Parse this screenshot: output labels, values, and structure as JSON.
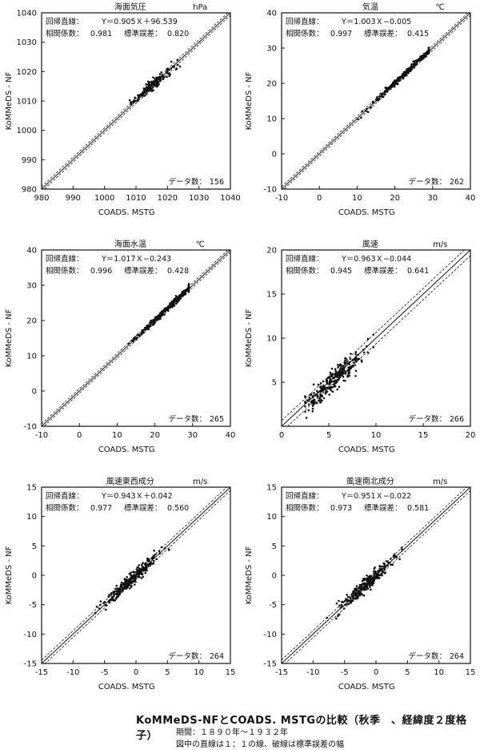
{
  "caption": {
    "title": "KoMMeDS-NFとCOADS. MSTGの比較（秋季　、経緯度２度格子）",
    "period": "期間：１８９０年〜１９３２年",
    "note": "図中の直線は１：１の線、破線は標準誤差の幅"
  },
  "chart_data": [
    {
      "type": "scatter",
      "title": "海面気圧",
      "unit": "hPa",
      "xlabel": "COADS. MSTG",
      "ylabel": "KoMMeDS - NF",
      "xlim": [
        980,
        1040
      ],
      "ylim": [
        980,
        1040
      ],
      "xticks": [
        990,
        1000,
        1010,
        1020,
        1030,
        1040
      ],
      "yticks": [
        980,
        990,
        1000,
        1010,
        1020,
        1030,
        1040
      ],
      "regression_label": "回帰直線：",
      "regression": "Y＝0.905Ｘ＋96.539",
      "correlation_label": "相関係数：",
      "correlation": "0.981",
      "stderr_label": "標準誤差：",
      "stderr": "0.820",
      "count_label": "データ数：",
      "count": "156",
      "slope": 0.905,
      "intercept": 96.539,
      "se": 0.82,
      "cloud": {
        "x_center": 1015.5,
        "x_spread": 3.6,
        "x_min": 1008,
        "x_max": 1024,
        "noise": 0.9,
        "n": 156
      }
    },
    {
      "type": "scatter",
      "title": "気温",
      "unit": "℃",
      "xlabel": "COADS. MSTG",
      "ylabel": "KoMMeDS - NF",
      "xlim": [
        -10,
        40
      ],
      "ylim": [
        -10,
        40
      ],
      "xticks": [
        0,
        10,
        20,
        30,
        40
      ],
      "yticks": [
        -10,
        0,
        10,
        20,
        30,
        40
      ],
      "regression_label": "回帰直線：",
      "regression": "Y＝1.003Ｘ−0.005",
      "correlation_label": "相関係数：",
      "correlation": "0.997",
      "stderr_label": "標準誤差：",
      "stderr": "0.415",
      "count_label": "データ数：",
      "count": "262",
      "slope": 1.003,
      "intercept": -0.005,
      "se": 0.415,
      "cloud": {
        "x_center": 22.5,
        "x_spread": 4.5,
        "x_min": 8,
        "x_max": 29,
        "noise": 0.45,
        "n": 262
      }
    },
    {
      "type": "scatter",
      "title": "海面水温",
      "unit": "℃",
      "xlabel": "COADS. MSTG",
      "ylabel": "KoMMeDS - NF",
      "xlim": [
        -10,
        40
      ],
      "ylim": [
        -10,
        40
      ],
      "xticks": [
        0,
        10,
        20,
        30,
        40
      ],
      "yticks": [
        -10,
        0,
        10,
        20,
        30,
        40
      ],
      "regression_label": "回帰直線：",
      "regression": "Y＝1.017Ｘ−0.243",
      "correlation_label": "相関係数：",
      "correlation": "0.996",
      "stderr_label": "標準誤差：",
      "stderr": "0.428",
      "count_label": "データ数：",
      "count": "265",
      "slope": 1.017,
      "intercept": -0.243,
      "se": 0.428,
      "cloud": {
        "x_center": 23,
        "x_spread": 4.2,
        "x_min": 11,
        "x_max": 29,
        "noise": 0.45,
        "n": 265
      }
    },
    {
      "type": "scatter",
      "title": "風速",
      "unit": "m/s",
      "xlabel": "COADS. MSTG",
      "ylabel": "KoMMeDS - NF",
      "xlim": [
        0,
        20
      ],
      "ylim": [
        0,
        20
      ],
      "xticks": [
        0,
        5,
        10,
        15,
        20
      ],
      "yticks": [
        5,
        10,
        15,
        20
      ],
      "regression_label": "回帰直線：",
      "regression": "Y＝0.963Ｘ−0.044",
      "correlation_label": "相関係数：",
      "correlation": "0.945",
      "stderr_label": "標準誤差：",
      "stderr": "0.641",
      "count_label": "データ数：",
      "count": "266",
      "slope": 0.963,
      "intercept": -0.044,
      "se": 0.641,
      "cloud": {
        "x_center": 5.3,
        "x_spread": 1.6,
        "x_min": 2.5,
        "x_max": 11,
        "noise": 0.65,
        "n": 266
      }
    },
    {
      "type": "scatter",
      "title": "風速東西成分",
      "unit": "m/s",
      "xlabel": "COADS. MSTG",
      "ylabel": "KoMMeDS - NF",
      "xlim": [
        -15,
        15
      ],
      "ylim": [
        -15,
        15
      ],
      "xticks": [
        -15,
        -10,
        -5,
        0,
        5,
        10,
        15
      ],
      "yticks": [
        -15,
        -10,
        -5,
        0,
        5,
        10,
        15
      ],
      "regression_label": "回帰直線：",
      "regression": "Y＝0.943Ｘ＋0.042",
      "correlation_label": "相関係数：",
      "correlation": "0.977",
      "stderr_label": "標準誤差：",
      "stderr": "0.560",
      "count_label": "データ数：",
      "count": "264",
      "slope": 0.943,
      "intercept": 0.042,
      "se": 0.56,
      "cloud": {
        "x_center": -0.5,
        "x_spread": 2.2,
        "x_min": -7,
        "x_max": 6,
        "noise": 0.6,
        "n": 264
      }
    },
    {
      "type": "scatter",
      "title": "風速南北成分",
      "unit": "m/s",
      "xlabel": "COADS. MSTG",
      "ylabel": "KoMMeDS - NF",
      "xlim": [
        -15,
        15
      ],
      "ylim": [
        -15,
        15
      ],
      "xticks": [
        -15,
        -10,
        -5,
        0,
        5,
        10,
        15
      ],
      "yticks": [
        -15,
        -10,
        -5,
        0,
        5,
        10,
        15
      ],
      "regression_label": "回帰直線：",
      "regression": "Y＝0.951Ｘ−0.022",
      "correlation_label": "相関係数：",
      "correlation": "0.973",
      "stderr_label": "標準誤差：",
      "stderr": "0.581",
      "count_label": "データ数：",
      "count": "264",
      "slope": 0.951,
      "intercept": -0.022,
      "se": 0.581,
      "cloud": {
        "x_center": -1.5,
        "x_spread": 2.2,
        "x_min": -8,
        "x_max": 5,
        "noise": 0.6,
        "n": 264
      }
    }
  ]
}
